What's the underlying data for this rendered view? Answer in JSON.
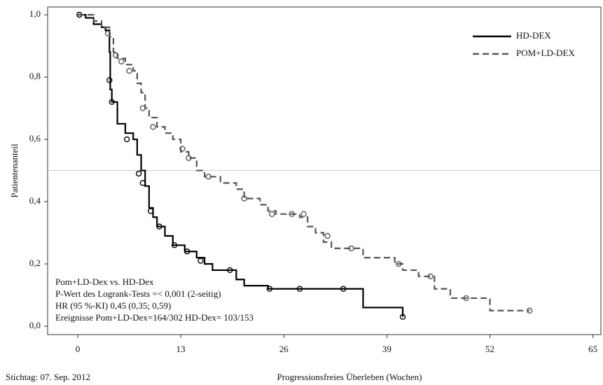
{
  "chart_data": {
    "type": "kaplan-meier",
    "y_label": "Patientenanteil",
    "x_label": "Progressionsfreies Überleben (Wochen)",
    "footnote": "Stichtag: 07. Sep. 2012",
    "annotations": [
      "Pom+LD-Dex vs. HD-Dex",
      "P-Wert des Logrank-Tests =< 0,001 (2-seitig)",
      "HR (95 %-KI) 0,45 (0,35; 0,59)",
      "Ereignisse Pom+LD-Dex=164/302 HD-Dex= 103/153"
    ],
    "xlim": [
      -3.8,
      66
    ],
    "ylim": [
      -0.027,
      1.025
    ],
    "xticks": [
      0,
      13,
      26,
      39,
      52,
      65
    ],
    "yticks": [
      {
        "value": 0,
        "label": "0,0"
      },
      {
        "value": 0.2,
        "label": "0,2"
      },
      {
        "value": 0.4,
        "label": "0,4"
      },
      {
        "value": 0.6,
        "label": "0,6"
      },
      {
        "value": 0.8,
        "label": "0,8"
      },
      {
        "value": 1,
        "label": "1,0"
      }
    ],
    "reference_line": 0.5,
    "legend_position": "upper right",
    "series": [
      {
        "name": "HD-DEX",
        "color": "#000000",
        "dash": false,
        "x": [
          0,
          1,
          2,
          3,
          3.5,
          4,
          4.1,
          4.3,
          5,
          6,
          7,
          7.5,
          8,
          8.5,
          9,
          9.5,
          10,
          11,
          12,
          13.5,
          15,
          16,
          17,
          20,
          21,
          24,
          36,
          41
        ],
        "values": [
          1,
          0.99,
          0.97,
          0.96,
          0.95,
          0.88,
          0.76,
          0.72,
          0.65,
          0.62,
          0.6,
          0.55,
          0.5,
          0.45,
          0.38,
          0.35,
          0.32,
          0.29,
          0.26,
          0.24,
          0.22,
          0.2,
          0.18,
          0.15,
          0.13,
          0.12,
          0.06,
          0.03
        ],
        "censored_x": [
          0.2,
          4,
          4.3,
          6.2,
          7.7,
          8.2,
          9.2,
          10.3,
          12.2,
          13.8,
          15.5,
          19.2,
          24.2,
          28,
          33.5,
          41
        ],
        "censored_y": [
          1,
          0.79,
          0.72,
          0.6,
          0.49,
          0.46,
          0.37,
          0.32,
          0.26,
          0.24,
          0.21,
          0.18,
          0.12,
          0.12,
          0.12,
          0.03
        ]
      },
      {
        "name": "POM+LD-DEX",
        "color": "#555555",
        "dash": true,
        "x": [
          0,
          2,
          3,
          4,
          4.5,
          5,
          6,
          7,
          7.5,
          8,
          8.5,
          9,
          10,
          11,
          12,
          13,
          14,
          15,
          16,
          18,
          20,
          21,
          23,
          24,
          25,
          28,
          29,
          30,
          31,
          32,
          36,
          40,
          41,
          43,
          45,
          47,
          52,
          57
        ],
        "values": [
          1,
          0.98,
          0.96,
          0.93,
          0.88,
          0.86,
          0.84,
          0.82,
          0.78,
          0.75,
          0.7,
          0.67,
          0.64,
          0.62,
          0.6,
          0.56,
          0.54,
          0.5,
          0.48,
          0.46,
          0.44,
          0.41,
          0.39,
          0.37,
          0.36,
          0.35,
          0.32,
          0.3,
          0.27,
          0.25,
          0.22,
          0.2,
          0.18,
          0.16,
          0.12,
          0.09,
          0.05,
          0.05
        ],
        "censored_x": [
          3.8,
          4.8,
          5.5,
          6.5,
          8.2,
          9.5,
          13.2,
          14,
          16.5,
          21,
          24.5,
          27,
          28.5,
          31.5,
          34.5,
          40.5,
          44.5,
          49,
          57
        ],
        "censored_y": [
          0.94,
          0.87,
          0.85,
          0.82,
          0.7,
          0.64,
          0.57,
          0.54,
          0.48,
          0.41,
          0.36,
          0.36,
          0.36,
          0.29,
          0.25,
          0.2,
          0.16,
          0.09,
          0.05
        ]
      }
    ]
  }
}
